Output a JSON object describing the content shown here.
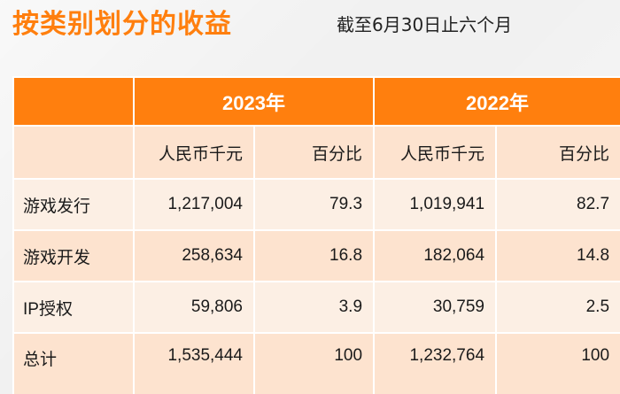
{
  "title": "按类别划分的收益",
  "subtitle": "截至6月30日止六个月",
  "colors": {
    "accent": "#ff7f0e",
    "row_dark": "#fde3cf",
    "row_light": "#fcefe4",
    "header_text": "#ffffff"
  },
  "table": {
    "years": [
      "2023年",
      "2022年"
    ],
    "units": [
      "人民币千元",
      "百分比",
      "人民币千元",
      "百分比"
    ],
    "rows": [
      {
        "label": "游戏发行",
        "values": [
          "1,217,004",
          "79.3",
          "1,019,941",
          "82.7"
        ]
      },
      {
        "label": "游戏开发",
        "values": [
          "258,634",
          "16.8",
          "182,064",
          "14.8"
        ]
      },
      {
        "label": "IP授权",
        "values": [
          "59,806",
          "3.9",
          "30,759",
          "2.5"
        ]
      },
      {
        "label": "总计",
        "values": [
          "1,535,444",
          "100",
          "1,232,764",
          "100"
        ]
      }
    ]
  }
}
